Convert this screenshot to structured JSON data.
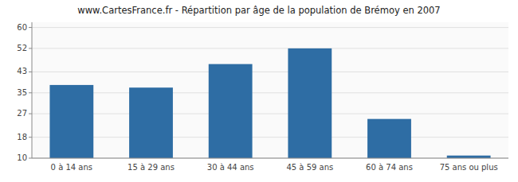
{
  "chart_data": {
    "type": "bar",
    "title": "www.CartesFrance.fr - Répartition par âge de la population de Brémoy en 2007",
    "categories": [
      "0 à 14 ans",
      "15 à 29 ans",
      "30 à 44 ans",
      "45 à 59 ans",
      "60 à 74 ans",
      "75 ans ou plus"
    ],
    "values": [
      38,
      37,
      46,
      52,
      25,
      11
    ],
    "color": "#2e6da4",
    "ylim": [
      10,
      62
    ],
    "yticks": [
      10,
      18,
      27,
      35,
      43,
      52,
      60
    ],
    "grid": true
  }
}
